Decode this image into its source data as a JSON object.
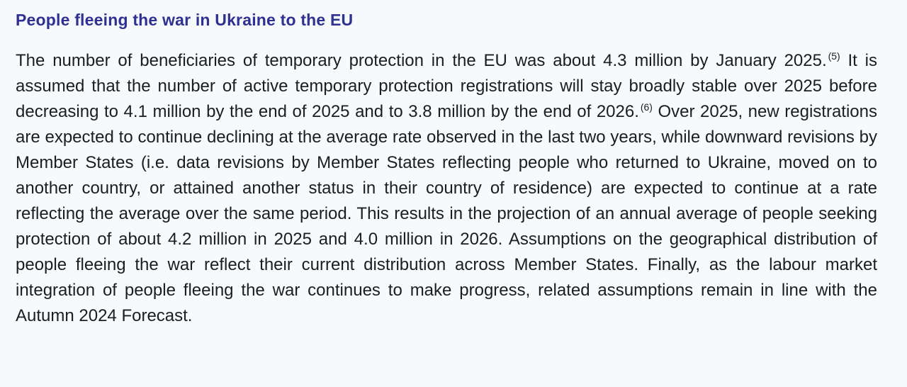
{
  "page": {
    "background_color": "#f6fafd",
    "heading_color": "#2e3192",
    "body_color": "#1b1e21"
  },
  "heading": "People fleeing the war in Ukraine to the EU",
  "paragraph": {
    "parts": [
      {
        "type": "text",
        "text": "The number of beneficiaries of temporary protection in the EU was about 4.3 million by January 2025."
      },
      {
        "type": "sup",
        "text": "(5)"
      },
      {
        "type": "text",
        "text": " It is assumed that the number of active temporary protection registrations will stay broadly stable over 2025 before decreasing to 4.1 million by the end of 2025 and to 3.8 million by the end of 2026."
      },
      {
        "type": "sup",
        "text": "(6)"
      },
      {
        "type": "text",
        "text": " Over 2025, new registrations are expected to continue declining at the average rate observed in the last two years, while downward revisions by Member States (i.e. data revisions by Member States reflecting people who returned to Ukraine, moved on to another country, or attained another status in their country of residence) are expected to continue at a rate reflecting the average over the same period. This results in the projection of an annual average of people seeking protection of about 4.2 million in 2025 and 4.0 million in 2026. Assumptions on the geographical distribution of people fleeing the war reflect their current distribution across Member States. Finally, as the labour market integration of people fleeing the war continues to make progress, related assumptions remain in line with the Autumn 2024 Forecast."
      }
    ]
  }
}
